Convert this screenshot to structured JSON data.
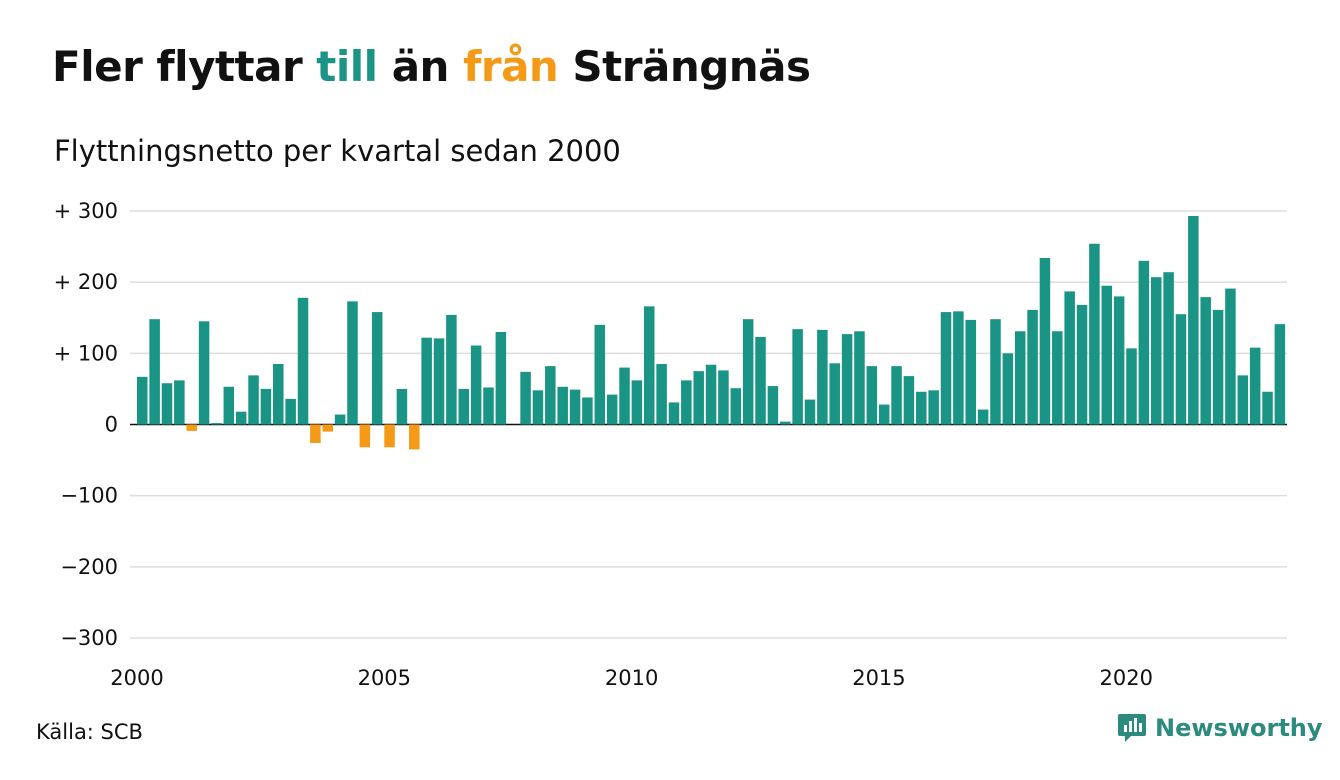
{
  "title": {
    "part1": "Fler flyttar ",
    "part2": "till",
    "part3": " än ",
    "part4": "från",
    "part5": " Strängnäs",
    "color_till": "#1a9484",
    "color_fran": "#f59a16"
  },
  "subtitle": "Flyttningsnetto per kvartal sedan 2000",
  "source": "Källa: SCB",
  "brand": {
    "name": "Newsworthy",
    "icon": "newsworthy-logo-icon",
    "color": "#2c8a7e"
  },
  "chart_data": {
    "type": "bar",
    "x_start_year": 2000,
    "x_end_year": 2023,
    "periods_per_year": 4,
    "ylim": [
      -300,
      300
    ],
    "y_ticks": [
      300,
      200,
      100,
      0,
      -100,
      -200,
      -300
    ],
    "y_tick_labels": [
      "+ 300",
      "+ 200",
      "+ 100",
      "0",
      "−100",
      "−200",
      "−300"
    ],
    "x_ticks": [
      2000,
      2005,
      2010,
      2015,
      2020
    ],
    "x_tick_labels": [
      "2000",
      "2005",
      "2010",
      "2015",
      "2020"
    ],
    "positive_color": "#1a9484",
    "negative_color": "#f59a16",
    "grid": true,
    "values": [
      67,
      148,
      58,
      62,
      -9,
      145,
      2,
      53,
      18,
      69,
      50,
      85,
      36,
      178,
      -26,
      -10,
      14,
      173,
      -32,
      158,
      -32,
      50,
      -35,
      122,
      121,
      154,
      50,
      111,
      52,
      130,
      0,
      74,
      48,
      82,
      53,
      49,
      38,
      140,
      42,
      80,
      62,
      166,
      85,
      31,
      62,
      75,
      84,
      76,
      51,
      148,
      123,
      54,
      4,
      134,
      35,
      133,
      86,
      127,
      131,
      82,
      28,
      82,
      68,
      46,
      48,
      158,
      159,
      147,
      21,
      148,
      100,
      131,
      161,
      234,
      131,
      187,
      168,
      254,
      195,
      180,
      107,
      230,
      207,
      214,
      155,
      293,
      179,
      161,
      191,
      69,
      108,
      46,
      141
    ]
  }
}
